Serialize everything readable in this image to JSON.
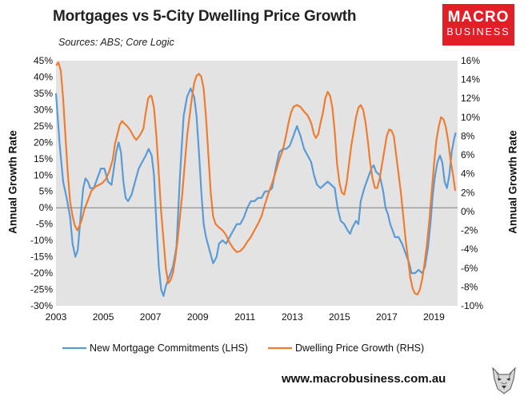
{
  "header": {
    "title": "Mortgages vs 5-City Dwelling Price Growth",
    "sources": "Sources: ABS; Core Logic"
  },
  "logo": {
    "line1": "MACRO",
    "line2": "BUSINESS"
  },
  "footer": {
    "url": "www.macrobusiness.com.au"
  },
  "colors": {
    "mortgage": "#5b9bd5",
    "price": "#ed7d31",
    "plot_bg": "#e3e3e3",
    "logo": "#e21f26"
  },
  "chart_data": {
    "type": "line",
    "x_ticks": [
      "2003",
      "2005",
      "2007",
      "2009",
      "2011",
      "2013",
      "2015",
      "2017",
      "2019"
    ],
    "xlim": [
      2003.0,
      2020.0
    ],
    "left_axis": {
      "label": "Annual Growth Rate",
      "range": [
        -30,
        45
      ],
      "ticks": [
        "45%",
        "40%",
        "35%",
        "30%",
        "25%",
        "20%",
        "15%",
        "10%",
        "5%",
        "0%",
        "-5%",
        "-10%",
        "-15%",
        "-20%",
        "-25%",
        "-30%"
      ]
    },
    "right_axis": {
      "label": "Annual Growth Rate",
      "range": [
        -10,
        16
      ],
      "ticks": [
        "16%",
        "14%",
        "12%",
        "10%",
        "8%",
        "6%",
        "4%",
        "2%",
        "0%",
        "-2%",
        "-4%",
        "-6%",
        "-8%",
        "-10%"
      ]
    },
    "series": [
      {
        "name": "New Mortgage Commitments (LHS)",
        "axis": "left",
        "points": [
          [
            2003.0,
            35
          ],
          [
            2003.15,
            20
          ],
          [
            2003.3,
            8
          ],
          [
            2003.45,
            3
          ],
          [
            2003.6,
            -3
          ],
          [
            2003.7,
            -11
          ],
          [
            2003.82,
            -15
          ],
          [
            2003.92,
            -13
          ],
          [
            2004.05,
            -2
          ],
          [
            2004.15,
            6
          ],
          [
            2004.25,
            9
          ],
          [
            2004.35,
            8
          ],
          [
            2004.45,
            6
          ],
          [
            2004.6,
            6
          ],
          [
            2004.75,
            9
          ],
          [
            2004.9,
            12
          ],
          [
            2005.05,
            12
          ],
          [
            2005.2,
            8
          ],
          [
            2005.35,
            7
          ],
          [
            2005.45,
            12
          ],
          [
            2005.55,
            17
          ],
          [
            2005.65,
            20
          ],
          [
            2005.75,
            17
          ],
          [
            2005.85,
            8
          ],
          [
            2005.95,
            3
          ],
          [
            2006.05,
            2
          ],
          [
            2006.2,
            4
          ],
          [
            2006.35,
            8
          ],
          [
            2006.5,
            12
          ],
          [
            2006.65,
            14
          ],
          [
            2006.8,
            16
          ],
          [
            2006.92,
            18
          ],
          [
            2007.05,
            16
          ],
          [
            2007.15,
            10
          ],
          [
            2007.25,
            -5
          ],
          [
            2007.35,
            -18
          ],
          [
            2007.45,
            -25
          ],
          [
            2007.55,
            -27
          ],
          [
            2007.65,
            -24
          ],
          [
            2007.8,
            -21
          ],
          [
            2007.95,
            -18
          ],
          [
            2008.1,
            -12
          ],
          [
            2008.25,
            10
          ],
          [
            2008.4,
            28
          ],
          [
            2008.55,
            34
          ],
          [
            2008.7,
            36.5
          ],
          [
            2008.85,
            34
          ],
          [
            2008.95,
            28
          ],
          [
            2009.05,
            17
          ],
          [
            2009.15,
            5
          ],
          [
            2009.25,
            -5
          ],
          [
            2009.35,
            -9
          ],
          [
            2009.5,
            -13
          ],
          [
            2009.65,
            -17
          ],
          [
            2009.8,
            -15
          ],
          [
            2009.9,
            -11
          ],
          [
            2010.05,
            -10
          ],
          [
            2010.2,
            -11
          ],
          [
            2010.35,
            -9
          ],
          [
            2010.5,
            -7
          ],
          [
            2010.65,
            -5
          ],
          [
            2010.8,
            -5
          ],
          [
            2010.95,
            -3
          ],
          [
            2011.1,
            0
          ],
          [
            2011.25,
            2
          ],
          [
            2011.4,
            2
          ],
          [
            2011.55,
            3
          ],
          [
            2011.7,
            3
          ],
          [
            2011.85,
            5
          ],
          [
            2012.0,
            5
          ],
          [
            2012.15,
            6
          ],
          [
            2012.3,
            12
          ],
          [
            2012.45,
            17
          ],
          [
            2012.6,
            18
          ],
          [
            2012.75,
            18
          ],
          [
            2012.9,
            19
          ],
          [
            2013.05,
            22
          ],
          [
            2013.2,
            25
          ],
          [
            2013.35,
            22
          ],
          [
            2013.5,
            18
          ],
          [
            2013.65,
            16
          ],
          [
            2013.8,
            14
          ],
          [
            2013.92,
            10
          ],
          [
            2014.05,
            7
          ],
          [
            2014.2,
            6
          ],
          [
            2014.35,
            7
          ],
          [
            2014.5,
            8
          ],
          [
            2014.65,
            7
          ],
          [
            2014.8,
            6
          ],
          [
            2014.92,
            0
          ],
          [
            2015.05,
            -4
          ],
          [
            2015.2,
            -5
          ],
          [
            2015.35,
            -7
          ],
          [
            2015.45,
            -8
          ],
          [
            2015.55,
            -6
          ],
          [
            2015.7,
            -4
          ],
          [
            2015.8,
            -5
          ],
          [
            2015.9,
            2
          ],
          [
            2016.05,
            6
          ],
          [
            2016.2,
            9
          ],
          [
            2016.35,
            12
          ],
          [
            2016.45,
            13
          ],
          [
            2016.55,
            11
          ],
          [
            2016.7,
            10
          ],
          [
            2016.85,
            5
          ],
          [
            2016.95,
            0
          ],
          [
            2017.05,
            -2
          ],
          [
            2017.15,
            -5
          ],
          [
            2017.25,
            -7
          ],
          [
            2017.35,
            -9
          ],
          [
            2017.5,
            -9
          ],
          [
            2017.65,
            -11
          ],
          [
            2017.8,
            -14
          ],
          [
            2017.95,
            -17
          ],
          [
            2018.05,
            -20
          ],
          [
            2018.2,
            -20
          ],
          [
            2018.35,
            -19
          ],
          [
            2018.5,
            -20
          ],
          [
            2018.62,
            -18
          ],
          [
            2018.75,
            -12
          ],
          [
            2018.85,
            -5
          ],
          [
            2018.95,
            4
          ],
          [
            2019.05,
            10
          ],
          [
            2019.15,
            14
          ],
          [
            2019.25,
            16
          ],
          [
            2019.35,
            14
          ],
          [
            2019.45,
            8
          ],
          [
            2019.55,
            6
          ],
          [
            2019.65,
            10
          ],
          [
            2019.75,
            17
          ],
          [
            2019.85,
            21
          ],
          [
            2019.92,
            23
          ]
        ]
      },
      {
        "name": "Dwelling Price Growth (RHS)",
        "axis": "right",
        "points": [
          [
            2003.0,
            15.5
          ],
          [
            2003.1,
            15.8
          ],
          [
            2003.2,
            15
          ],
          [
            2003.3,
            12
          ],
          [
            2003.4,
            8
          ],
          [
            2003.5,
            4
          ],
          [
            2003.6,
            1
          ],
          [
            2003.7,
            -0.5
          ],
          [
            2003.8,
            -1.5
          ],
          [
            2003.9,
            -2
          ],
          [
            2004.0,
            -1.5
          ],
          [
            2004.1,
            -0.8
          ],
          [
            2004.2,
            0.2
          ],
          [
            2004.35,
            1.2
          ],
          [
            2004.5,
            2.2
          ],
          [
            2004.65,
            2.6
          ],
          [
            2004.8,
            2.8
          ],
          [
            2004.95,
            3
          ],
          [
            2005.1,
            3.4
          ],
          [
            2005.25,
            4.2
          ],
          [
            2005.4,
            5.5
          ],
          [
            2005.5,
            7.2
          ],
          [
            2005.6,
            8.2
          ],
          [
            2005.7,
            9.2
          ],
          [
            2005.8,
            9.6
          ],
          [
            2005.9,
            9.3
          ],
          [
            2006.0,
            9.1
          ],
          [
            2006.15,
            8.6
          ],
          [
            2006.3,
            7.9
          ],
          [
            2006.4,
            7.6
          ],
          [
            2006.5,
            7.9
          ],
          [
            2006.6,
            8.3
          ],
          [
            2006.7,
            8.8
          ],
          [
            2006.8,
            10.5
          ],
          [
            2006.9,
            12
          ],
          [
            2007.0,
            12.3
          ],
          [
            2007.05,
            12.2
          ],
          [
            2007.15,
            11
          ],
          [
            2007.25,
            8
          ],
          [
            2007.35,
            4
          ],
          [
            2007.45,
            0
          ],
          [
            2007.55,
            -3
          ],
          [
            2007.65,
            -6
          ],
          [
            2007.75,
            -7.6
          ],
          [
            2007.85,
            -7.3
          ],
          [
            2007.95,
            -6.5
          ],
          [
            2008.05,
            -5
          ],
          [
            2008.15,
            -3
          ],
          [
            2008.25,
            -0.5
          ],
          [
            2008.35,
            2
          ],
          [
            2008.45,
            5
          ],
          [
            2008.55,
            8
          ],
          [
            2008.65,
            10
          ],
          [
            2008.75,
            12
          ],
          [
            2008.85,
            13.6
          ],
          [
            2008.95,
            14.4
          ],
          [
            2009.05,
            14.6
          ],
          [
            2009.15,
            14.3
          ],
          [
            2009.25,
            13
          ],
          [
            2009.35,
            10
          ],
          [
            2009.45,
            6
          ],
          [
            2009.55,
            2
          ],
          [
            2009.65,
            -0.5
          ],
          [
            2009.75,
            -1.3
          ],
          [
            2009.9,
            -1.7
          ],
          [
            2010.05,
            -2
          ],
          [
            2010.2,
            -2.5
          ],
          [
            2010.35,
            -3.3
          ],
          [
            2010.5,
            -3.9
          ],
          [
            2010.65,
            -4.3
          ],
          [
            2010.8,
            -4.2
          ],
          [
            2010.95,
            -3.8
          ],
          [
            2011.1,
            -3.2
          ],
          [
            2011.25,
            -2.7
          ],
          [
            2011.4,
            -2
          ],
          [
            2011.55,
            -1.3
          ],
          [
            2011.7,
            -0.5
          ],
          [
            2011.85,
            0.8
          ],
          [
            2012.0,
            2
          ],
          [
            2012.15,
            3
          ],
          [
            2012.3,
            4.2
          ],
          [
            2012.45,
            5.5
          ],
          [
            2012.6,
            6.5
          ],
          [
            2012.75,
            8.2
          ],
          [
            2012.85,
            9.5
          ],
          [
            2012.95,
            10.5
          ],
          [
            2013.05,
            11.1
          ],
          [
            2013.2,
            11.3
          ],
          [
            2013.35,
            11.1
          ],
          [
            2013.5,
            10.6
          ],
          [
            2013.65,
            10.2
          ],
          [
            2013.8,
            9.4
          ],
          [
            2013.92,
            8.2
          ],
          [
            2014.0,
            7.8
          ],
          [
            2014.1,
            8.2
          ],
          [
            2014.2,
            9.4
          ],
          [
            2014.3,
            10.5
          ],
          [
            2014.4,
            12
          ],
          [
            2014.5,
            12.7
          ],
          [
            2014.6,
            12.3
          ],
          [
            2014.7,
            11
          ],
          [
            2014.8,
            8.5
          ],
          [
            2014.9,
            5
          ],
          [
            2015.0,
            3
          ],
          [
            2015.1,
            2
          ],
          [
            2015.2,
            1.8
          ],
          [
            2015.3,
            3
          ],
          [
            2015.4,
            5
          ],
          [
            2015.5,
            7
          ],
          [
            2015.6,
            8.5
          ],
          [
            2015.7,
            10
          ],
          [
            2015.8,
            11
          ],
          [
            2015.9,
            11.3
          ],
          [
            2016.0,
            10.8
          ],
          [
            2016.1,
            9.5
          ],
          [
            2016.2,
            7.5
          ],
          [
            2016.3,
            5.2
          ],
          [
            2016.4,
            3.5
          ],
          [
            2016.5,
            2.5
          ],
          [
            2016.6,
            2.5
          ],
          [
            2016.7,
            3.5
          ],
          [
            2016.8,
            5
          ],
          [
            2016.9,
            6.5
          ],
          [
            2017.0,
            8
          ],
          [
            2017.1,
            8.7
          ],
          [
            2017.2,
            8.6
          ],
          [
            2017.3,
            8
          ],
          [
            2017.4,
            6
          ],
          [
            2017.5,
            4
          ],
          [
            2017.6,
            2
          ],
          [
            2017.7,
            -0.5
          ],
          [
            2017.8,
            -3
          ],
          [
            2017.9,
            -5
          ],
          [
            2018.0,
            -7
          ],
          [
            2018.1,
            -8.2
          ],
          [
            2018.2,
            -8.7
          ],
          [
            2018.3,
            -8.8
          ],
          [
            2018.4,
            -8.3
          ],
          [
            2018.5,
            -7.2
          ],
          [
            2018.6,
            -5.5
          ],
          [
            2018.7,
            -3.5
          ],
          [
            2018.8,
            -1
          ],
          [
            2018.9,
            2
          ],
          [
            2019.0,
            5
          ],
          [
            2019.1,
            7.5
          ],
          [
            2019.2,
            9
          ],
          [
            2019.3,
            10
          ],
          [
            2019.4,
            9.8
          ],
          [
            2019.5,
            9
          ],
          [
            2019.6,
            7.5
          ],
          [
            2019.7,
            5.5
          ],
          [
            2019.8,
            4
          ],
          [
            2019.9,
            2.2
          ]
        ]
      }
    ],
    "legend": {
      "placement": "bottom"
    }
  }
}
